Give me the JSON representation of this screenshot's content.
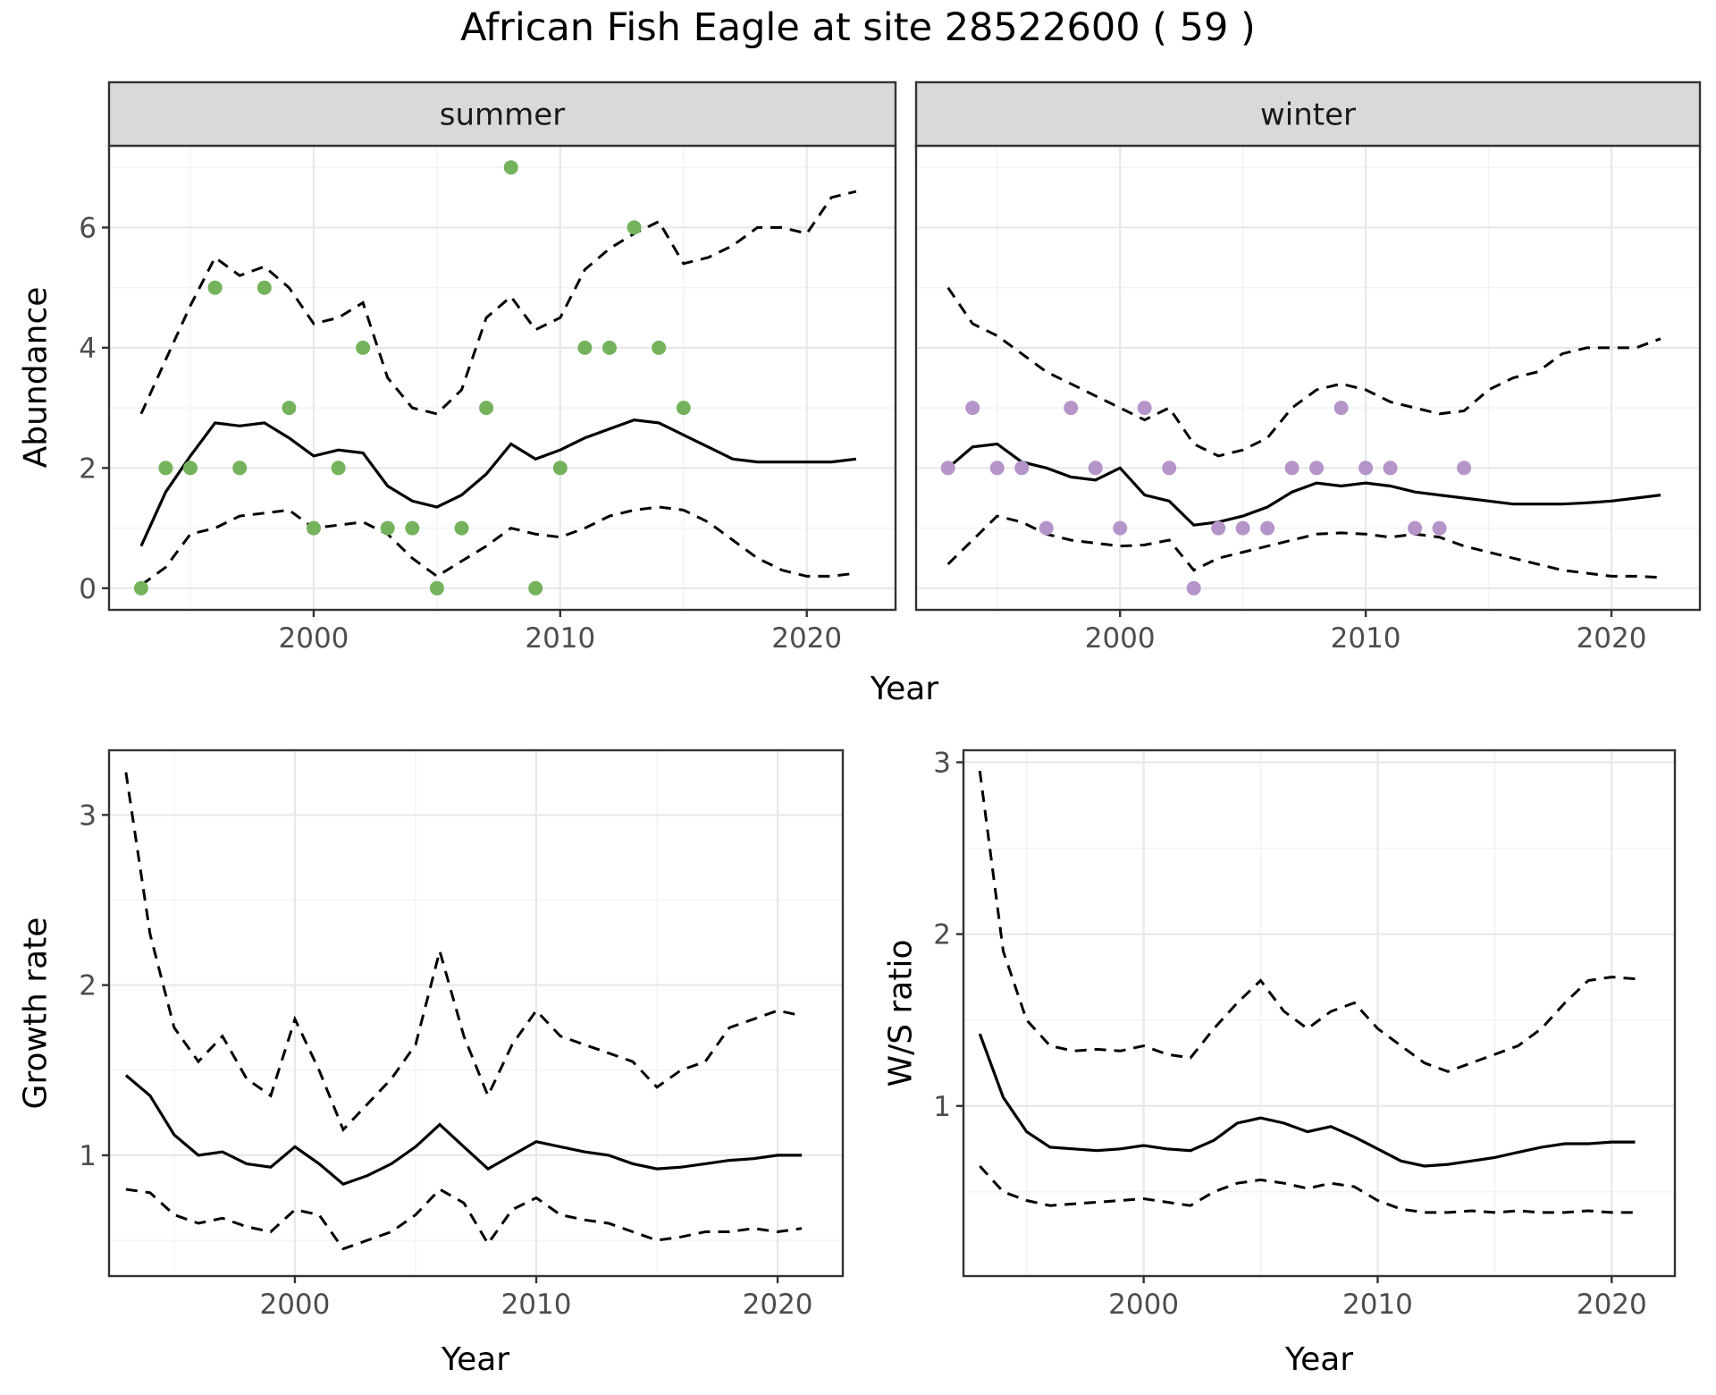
{
  "title": "African Fish Eagle at site 28522600 ( 59 )",
  "colors": {
    "summer_point": "#74b25c",
    "winter_point": "#b494c9",
    "line": "#000000",
    "grid_major": "#e8e8e8",
    "grid_minor": "#f3f3f3",
    "panel_bg": "#ffffff",
    "panel_border": "#333333",
    "strip_bg": "#d9d9d9",
    "strip_border": "#333333",
    "tick_mark": "#333333",
    "tick_label": "#4d4d4d",
    "strip_text": "#1a1a1a"
  },
  "chart_data": [
    {
      "id": "abundance",
      "type": "line",
      "xlabel": "Year",
      "ylabel": "Abundance",
      "xlim": [
        1991.7,
        2023.6
      ],
      "ylim": [
        -0.36,
        7.36
      ],
      "xticks": [
        2000,
        2010,
        2020
      ],
      "xminor": [
        1995,
        2005,
        2015
      ],
      "yticks": [
        0,
        2,
        4,
        6
      ],
      "yminor": [
        1,
        3,
        5,
        7
      ],
      "years": [
        1993,
        1994,
        1995,
        1996,
        1997,
        1998,
        1999,
        2000,
        2001,
        2002,
        2003,
        2004,
        2005,
        2006,
        2007,
        2008,
        2009,
        2010,
        2011,
        2012,
        2013,
        2014,
        2015,
        2016,
        2017,
        2018,
        2019,
        2020,
        2021,
        2022
      ],
      "panels": [
        {
          "name": "summer",
          "point_color": "#74b25c",
          "points": {
            "years": [
              1993,
              1994,
              1995,
              1996,
              1997,
              1998,
              1999,
              2000,
              2001,
              2002,
              2003,
              2004,
              2005,
              2006,
              2007,
              2008,
              2009,
              2010,
              2011,
              2012,
              2013,
              2014,
              2015
            ],
            "values": [
              0,
              2,
              2,
              5,
              2,
              5,
              3,
              1,
              2,
              4,
              1,
              1,
              0,
              1,
              3,
              7,
              0,
              2,
              4,
              4,
              6,
              4,
              3
            ]
          },
          "mean": [
            0.7,
            1.6,
            2.2,
            2.75,
            2.7,
            2.75,
            2.5,
            2.2,
            2.3,
            2.25,
            1.7,
            1.45,
            1.35,
            1.55,
            1.9,
            2.4,
            2.15,
            2.3,
            2.5,
            2.65,
            2.8,
            2.75,
            2.55,
            2.35,
            2.15,
            2.1,
            2.1,
            2.1,
            2.1,
            2.15
          ],
          "upper": [
            2.9,
            3.8,
            4.7,
            5.5,
            5.2,
            5.35,
            5.0,
            4.4,
            4.5,
            4.75,
            3.5,
            3.0,
            2.9,
            3.3,
            4.5,
            4.85,
            4.3,
            4.5,
            5.3,
            5.65,
            5.9,
            6.1,
            5.4,
            5.5,
            5.7,
            6.0,
            6.0,
            5.9,
            6.5,
            6.6
          ],
          "lower": [
            0.05,
            0.35,
            0.9,
            1.0,
            1.2,
            1.25,
            1.3,
            1.0,
            1.05,
            1.1,
            0.9,
            0.5,
            0.2,
            0.45,
            0.7,
            1.0,
            0.9,
            0.85,
            1.0,
            1.2,
            1.3,
            1.35,
            1.3,
            1.1,
            0.8,
            0.5,
            0.3,
            0.2,
            0.2,
            0.25
          ]
        },
        {
          "name": "winter",
          "point_color": "#b494c9",
          "points": {
            "years": [
              1993,
              1994,
              1995,
              1996,
              1997,
              1998,
              1999,
              2000,
              2001,
              2002,
              2003,
              2004,
              2005,
              2006,
              2007,
              2008,
              2009,
              2010,
              2011,
              2012,
              2013,
              2014
            ],
            "values": [
              2,
              3,
              2,
              2,
              1,
              3,
              2,
              1,
              3,
              2,
              0,
              1,
              1,
              1,
              2,
              2,
              3,
              2,
              2,
              1,
              1,
              2
            ]
          },
          "mean": [
            2.0,
            2.35,
            2.4,
            2.1,
            2.0,
            1.85,
            1.8,
            2.0,
            1.55,
            1.45,
            1.05,
            1.1,
            1.2,
            1.35,
            1.6,
            1.75,
            1.7,
            1.75,
            1.7,
            1.6,
            1.55,
            1.5,
            1.45,
            1.4,
            1.4,
            1.4,
            1.42,
            1.45,
            1.5,
            1.55
          ],
          "upper": [
            5.0,
            4.4,
            4.2,
            3.9,
            3.6,
            3.4,
            3.2,
            3.0,
            2.8,
            3.0,
            2.4,
            2.2,
            2.3,
            2.5,
            3.0,
            3.3,
            3.4,
            3.3,
            3.1,
            3.0,
            2.9,
            2.95,
            3.3,
            3.5,
            3.6,
            3.9,
            4.0,
            4.0,
            4.0,
            4.15
          ],
          "lower": [
            0.4,
            0.8,
            1.2,
            1.1,
            0.9,
            0.8,
            0.75,
            0.7,
            0.72,
            0.8,
            0.3,
            0.5,
            0.6,
            0.7,
            0.8,
            0.9,
            0.92,
            0.9,
            0.85,
            0.9,
            0.85,
            0.7,
            0.6,
            0.5,
            0.4,
            0.3,
            0.25,
            0.2,
            0.2,
            0.18
          ]
        }
      ]
    },
    {
      "id": "growth_rate",
      "type": "line",
      "xlabel": "Year",
      "ylabel": "Growth rate",
      "xlim": [
        1992.3,
        2022.7
      ],
      "ylim": [
        0.29,
        3.38
      ],
      "xticks": [
        2000,
        2010,
        2020
      ],
      "xminor": [
        1995,
        2005,
        2015
      ],
      "yticks": [
        1,
        2,
        3
      ],
      "yminor": [
        0.5,
        1.5,
        2.5
      ],
      "years": [
        1993,
        1994,
        1995,
        1996,
        1997,
        1998,
        1999,
        2000,
        2001,
        2002,
        2003,
        2004,
        2005,
        2006,
        2007,
        2008,
        2009,
        2010,
        2011,
        2012,
        2013,
        2014,
        2015,
        2016,
        2017,
        2018,
        2019,
        2020,
        2021
      ],
      "mean": [
        1.47,
        1.35,
        1.12,
        1.0,
        1.02,
        0.95,
        0.93,
        1.05,
        0.95,
        0.83,
        0.88,
        0.95,
        1.05,
        1.18,
        1.05,
        0.92,
        1.0,
        1.08,
        1.05,
        1.02,
        1.0,
        0.95,
        0.92,
        0.93,
        0.95,
        0.97,
        0.98,
        1.0,
        1.0
      ],
      "upper": [
        3.25,
        2.3,
        1.75,
        1.55,
        1.7,
        1.45,
        1.35,
        1.8,
        1.5,
        1.15,
        1.3,
        1.45,
        1.65,
        2.2,
        1.7,
        1.35,
        1.65,
        1.85,
        1.7,
        1.65,
        1.6,
        1.55,
        1.4,
        1.5,
        1.55,
        1.75,
        1.8,
        1.85,
        1.82
      ],
      "lower": [
        0.8,
        0.78,
        0.65,
        0.6,
        0.63,
        0.58,
        0.55,
        0.68,
        0.65,
        0.45,
        0.5,
        0.55,
        0.65,
        0.8,
        0.72,
        0.48,
        0.68,
        0.75,
        0.65,
        0.62,
        0.6,
        0.55,
        0.5,
        0.52,
        0.55,
        0.55,
        0.57,
        0.55,
        0.57
      ]
    },
    {
      "id": "ws_ratio",
      "type": "line",
      "xlabel": "Year",
      "ylabel": "W/S ratio",
      "xlim": [
        1992.3,
        2022.7
      ],
      "ylim": [
        0.01,
        3.07
      ],
      "xticks": [
        2000,
        2010,
        2020
      ],
      "xminor": [
        1995,
        2005,
        2015
      ],
      "yticks": [
        1,
        2,
        3
      ],
      "yminor": [
        0.5,
        1.5,
        2.5
      ],
      "years": [
        1993,
        1994,
        1995,
        1996,
        1997,
        1998,
        1999,
        2000,
        2001,
        2002,
        2003,
        2004,
        2005,
        2006,
        2007,
        2008,
        2009,
        2010,
        2011,
        2012,
        2013,
        2014,
        2015,
        2016,
        2017,
        2018,
        2019,
        2020,
        2021
      ],
      "mean": [
        1.42,
        1.05,
        0.85,
        0.76,
        0.75,
        0.74,
        0.75,
        0.77,
        0.75,
        0.74,
        0.8,
        0.9,
        0.93,
        0.9,
        0.85,
        0.88,
        0.82,
        0.75,
        0.68,
        0.65,
        0.66,
        0.68,
        0.7,
        0.73,
        0.76,
        0.78,
        0.78,
        0.79,
        0.79
      ],
      "upper": [
        2.95,
        1.9,
        1.5,
        1.35,
        1.32,
        1.33,
        1.32,
        1.35,
        1.3,
        1.28,
        1.45,
        1.6,
        1.73,
        1.55,
        1.45,
        1.55,
        1.6,
        1.45,
        1.35,
        1.25,
        1.2,
        1.25,
        1.3,
        1.35,
        1.45,
        1.6,
        1.73,
        1.75,
        1.74
      ],
      "lower": [
        0.65,
        0.5,
        0.45,
        0.42,
        0.43,
        0.44,
        0.45,
        0.46,
        0.44,
        0.42,
        0.5,
        0.55,
        0.57,
        0.55,
        0.52,
        0.55,
        0.53,
        0.45,
        0.4,
        0.38,
        0.38,
        0.39,
        0.38,
        0.39,
        0.38,
        0.38,
        0.39,
        0.38,
        0.38
      ]
    }
  ]
}
